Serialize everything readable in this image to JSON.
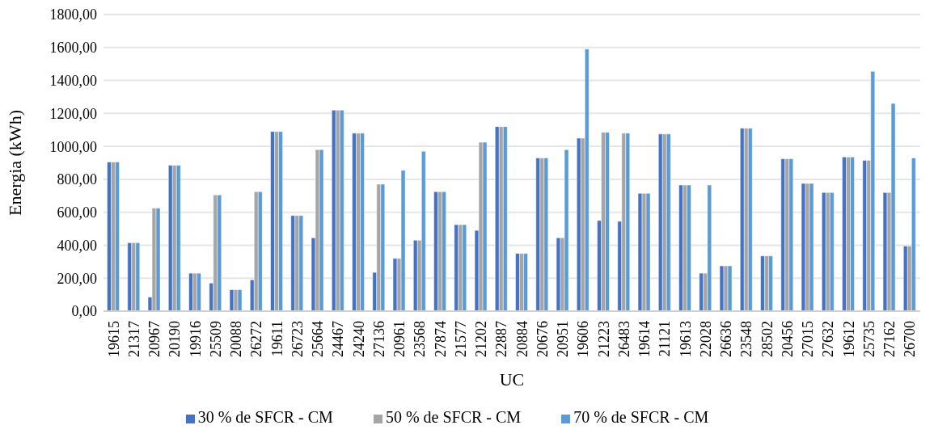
{
  "chart_data": {
    "type": "bar",
    "xlabel": "UC",
    "ylabel": "Energia (kWh)",
    "categories": [
      "19615",
      "21317",
      "20967",
      "20190",
      "19916",
      "25509",
      "20088",
      "26272",
      "19611",
      "26723",
      "25664",
      "24467",
      "24240",
      "27136",
      "20961",
      "23568",
      "27874",
      "21577",
      "21202",
      "22887",
      "20884",
      "20676",
      "20951",
      "19606",
      "21223",
      "26483",
      "19614",
      "21121",
      "19613",
      "22028",
      "26636",
      "23548",
      "28502",
      "20456",
      "27015",
      "27632",
      "19612",
      "25735",
      "27162",
      "26700"
    ],
    "series": [
      {
        "name": "30 % de SFCR - CM",
        "color": "#4472c4",
        "values": [
          905,
          415,
          85,
          885,
          230,
          170,
          130,
          190,
          1090,
          580,
          445,
          1220,
          1080,
          235,
          320,
          430,
          725,
          525,
          490,
          1120,
          350,
          930,
          445,
          1050,
          550,
          545,
          715,
          1075,
          765,
          230,
          275,
          1110,
          335,
          925,
          775,
          720,
          935,
          915,
          720,
          395
        ]
      },
      {
        "name": "50 % de SFCR - CM",
        "color": "#a5a5a5",
        "values": [
          905,
          415,
          625,
          885,
          230,
          705,
          130,
          725,
          1090,
          580,
          980,
          1220,
          1080,
          770,
          320,
          430,
          725,
          525,
          1025,
          1120,
          350,
          930,
          445,
          1050,
          1085,
          1080,
          715,
          1075,
          765,
          230,
          275,
          1110,
          335,
          925,
          775,
          720,
          935,
          915,
          720,
          395
        ]
      },
      {
        "name": "70 % de SFCR - CM",
        "color": "#5b9bd5",
        "values": [
          905,
          415,
          625,
          885,
          230,
          705,
          130,
          725,
          1090,
          580,
          980,
          1220,
          1080,
          770,
          855,
          970,
          725,
          525,
          1025,
          1120,
          350,
          930,
          980,
          1590,
          1085,
          1080,
          715,
          1075,
          765,
          765,
          275,
          1110,
          335,
          925,
          775,
          720,
          935,
          1455,
          1260,
          930
        ]
      }
    ],
    "ylim": [
      0,
      1800
    ],
    "yticks": [
      {
        "value": 0,
        "label": "0,00"
      },
      {
        "value": 200,
        "label": "200,00"
      },
      {
        "value": 400,
        "label": "400,00"
      },
      {
        "value": 600,
        "label": "600,00"
      },
      {
        "value": 800,
        "label": "800,00"
      },
      {
        "value": 1000,
        "label": "1000,00"
      },
      {
        "value": 1200,
        "label": "1200,00"
      },
      {
        "value": 1400,
        "label": "1400,00"
      },
      {
        "value": 1600,
        "label": "1600,00"
      },
      {
        "value": 1800,
        "label": "1800,00"
      }
    ],
    "grid": "y",
    "legend": "bottom"
  }
}
